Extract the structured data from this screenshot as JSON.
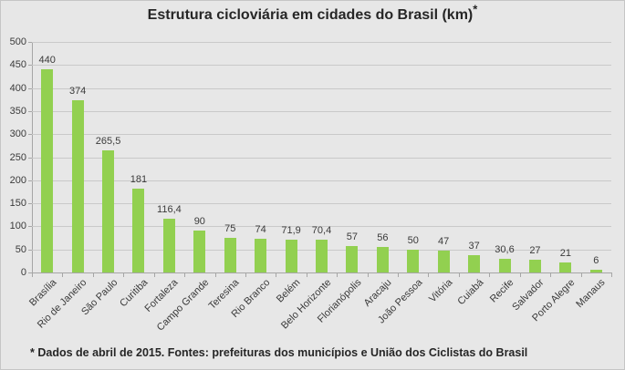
{
  "page": {
    "background_color": "#E7E7E7",
    "border_color": "#C6C6C6"
  },
  "chart_data": {
    "type": "bar",
    "title": "Estrutura cicloviária em cidades do Brasil (km)*",
    "title_main": "Estrutura cicloviária em cidades do Brasil (km)",
    "title_superscript": "*",
    "categories": [
      "Brasília",
      "Rio de Janeiro",
      "São Paulo",
      "Curitiba",
      "Fortaleza",
      "Campo Grande",
      "Teresina",
      "Rio Branco",
      "Belém",
      "Belo Horizonte",
      "Florianópolis",
      "Aracaju",
      "João Pessoa",
      "Vitória",
      "Cuiabá",
      "Recife",
      "Salvador",
      "Porto Alegre",
      "Manaus"
    ],
    "values": [
      440,
      374,
      265.5,
      181,
      116.4,
      90,
      75,
      74,
      71.9,
      70.4,
      57,
      56,
      50,
      47,
      37,
      30.6,
      27,
      21,
      6
    ],
    "value_labels": [
      "440",
      "374",
      "265,5",
      "181",
      "116,4",
      "90",
      "75",
      "74",
      "71,9",
      "70,4",
      "57",
      "56",
      "50",
      "47",
      "37",
      "30,6",
      "27",
      "21",
      "6"
    ],
    "xlabel": "",
    "ylabel": "",
    "ylim": [
      0,
      500
    ],
    "yticks": [
      0,
      50,
      100,
      150,
      200,
      250,
      300,
      350,
      400,
      450,
      500
    ],
    "grid": true,
    "legend": "none",
    "bar_color": "#92D050",
    "gridline_color": "#C9C9C9",
    "axis_color": "#A6A6A6",
    "label_color": "#3A3A3A",
    "footnote": "* Dados de abril de 2015. Fontes: prefeituras dos municípios e União dos Ciclistas do Brasil"
  }
}
